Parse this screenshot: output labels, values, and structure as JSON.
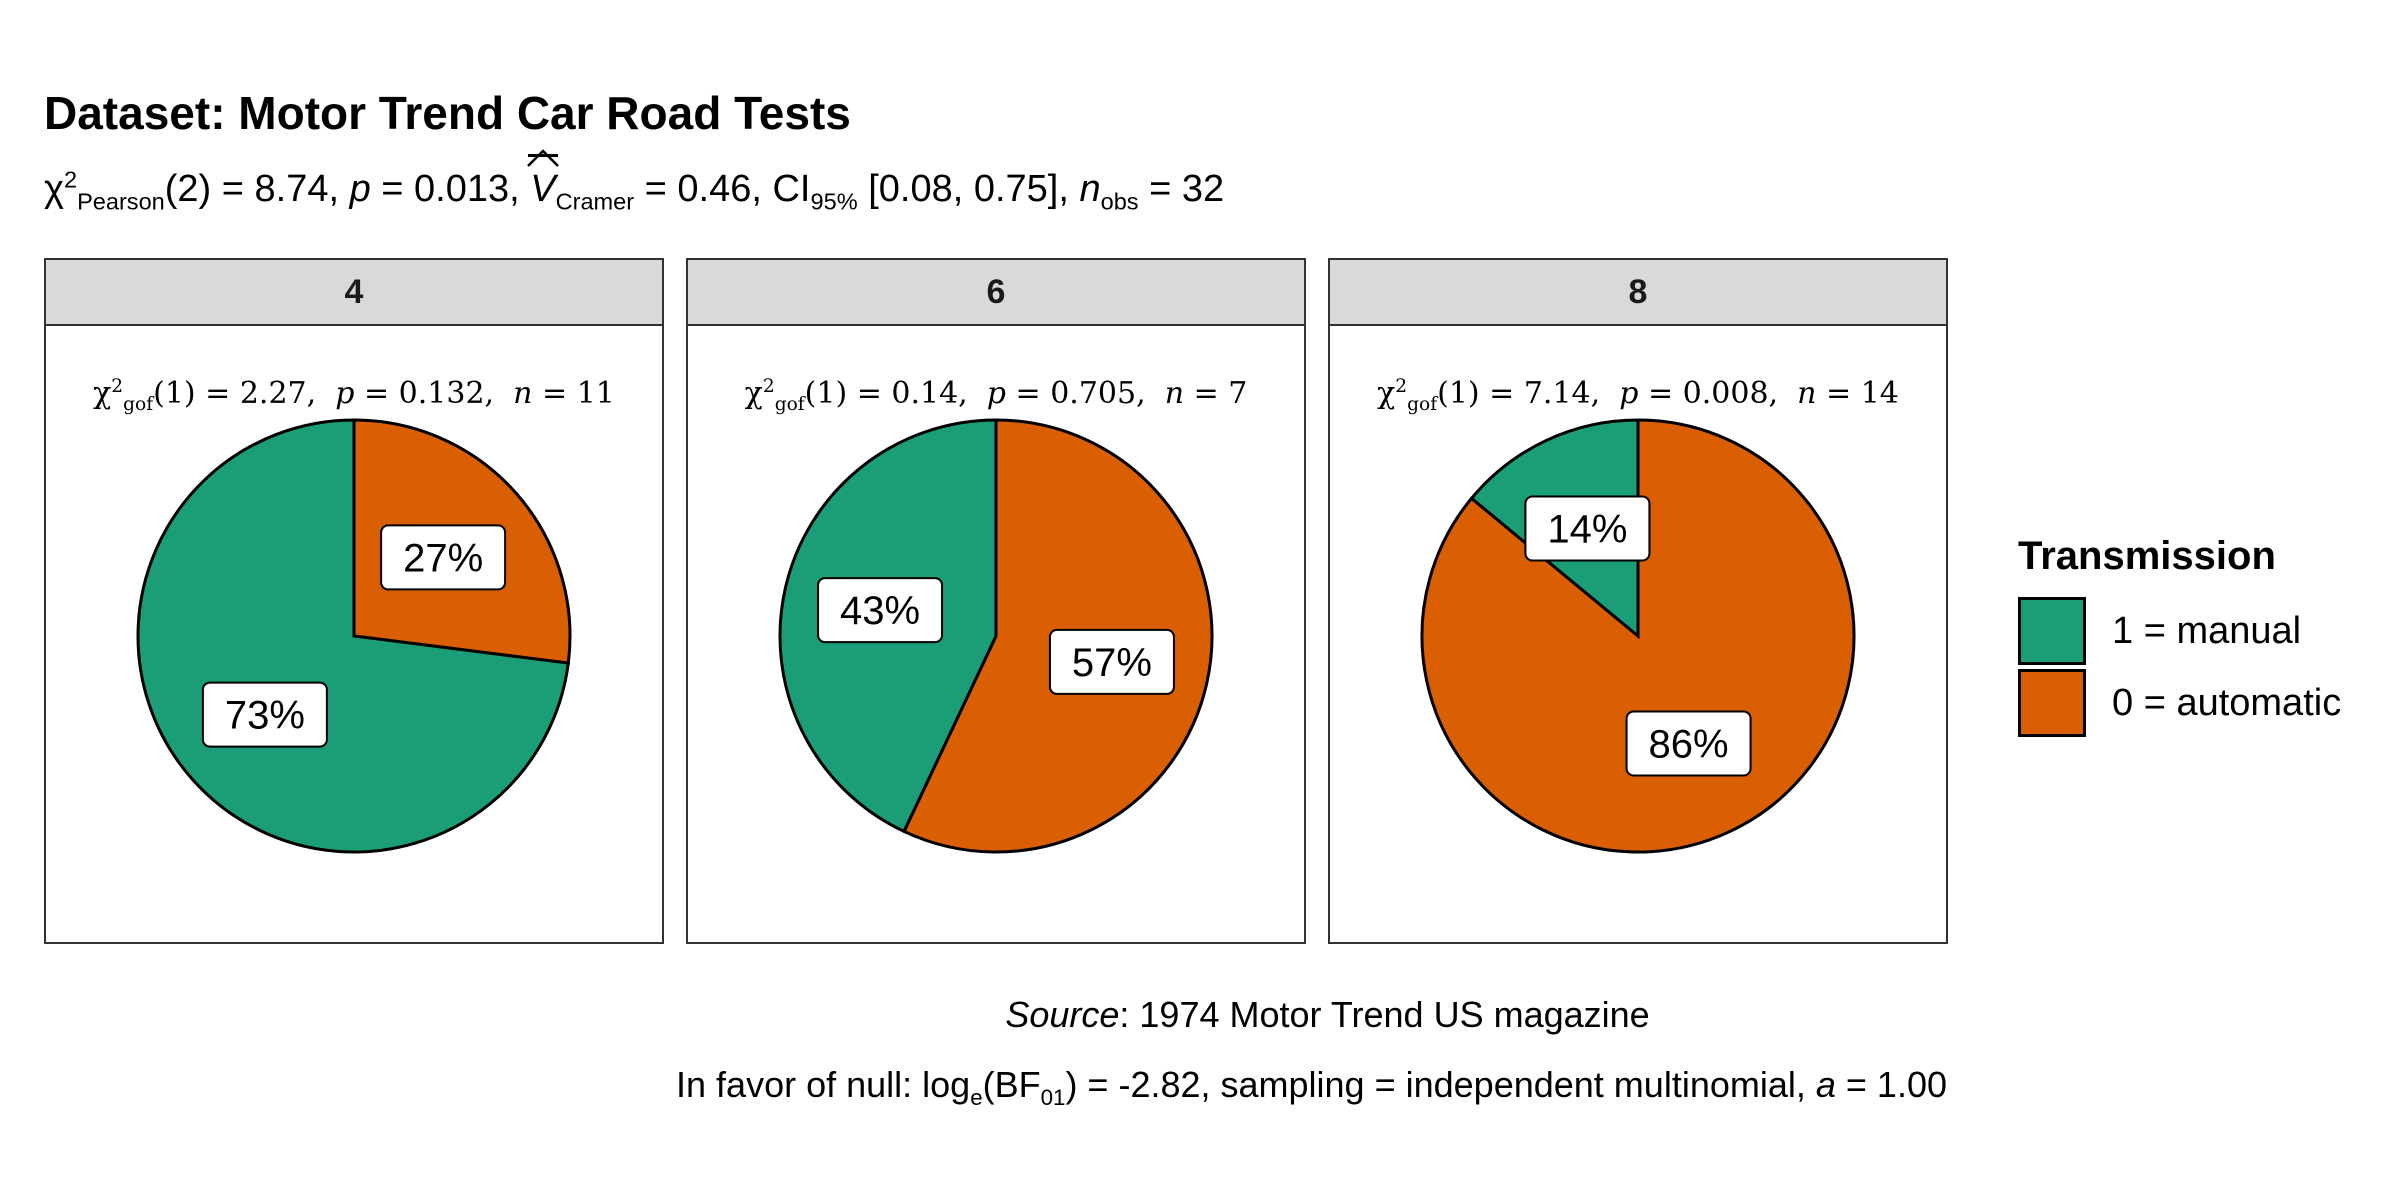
{
  "title": "Dataset: Motor Trend Car Road Tests",
  "subtitle": {
    "chi_symbol": "χ",
    "chi_sup": "2",
    "chi_sub": "Pearson",
    "df_text": "(2) = 8.74, ",
    "p_label": "p",
    "p_text": " = 0.013, ",
    "v_label": "V",
    "v_sub": "Cramer",
    "v_text": " = 0.46, CI",
    "ci_sub": "95%",
    "ci_text": " [0.08, 0.75], ",
    "n_label": "n",
    "n_sub": "obs",
    "n_text": " = 32"
  },
  "chart_data": {
    "type": "pie",
    "facet_variable": "cyl",
    "legend": {
      "title": "Transmission",
      "position": "right",
      "entries": [
        {
          "label": "1 = manual",
          "color": "#1b9e77"
        },
        {
          "label": "0 = automatic",
          "color": "#d95f02"
        }
      ]
    },
    "facets": [
      {
        "strip": "4",
        "stat": {
          "df": "(1)",
          "rest": " = 2.27,  ",
          "p": " = 0.132,  ",
          "n": " = 11"
        },
        "slices": [
          {
            "category": "0 = automatic",
            "value": 27,
            "label": "27%"
          },
          {
            "category": "1 = manual",
            "value": 73,
            "label": "73%"
          }
        ]
      },
      {
        "strip": "6",
        "stat": {
          "df": "(1)",
          "rest": " = 0.14,  ",
          "p": " = 0.705,  ",
          "n": " = 7"
        },
        "slices": [
          {
            "category": "0 = automatic",
            "value": 57,
            "label": "57%"
          },
          {
            "category": "1 = manual",
            "value": 43,
            "label": "43%"
          }
        ]
      },
      {
        "strip": "8",
        "stat": {
          "df": "(1)",
          "rest": " = 7.14,  ",
          "p": " = 0.008,  ",
          "n": " = 14"
        },
        "slices": [
          {
            "category": "0 = automatic",
            "value": 86,
            "label": "86%"
          },
          {
            "category": "1 = manual",
            "value": 14,
            "label": "14%"
          }
        ]
      }
    ],
    "colors": {
      "manual": "#1b9e77",
      "automatic": "#d95f02"
    }
  },
  "stat_symbols": {
    "chi": "χ",
    "sup": "2",
    "sub": "gof",
    "p": "p",
    "n": "n"
  },
  "caption": {
    "source_label": "Source",
    "source_text": ": 1974 Motor Trend US magazine",
    "bf_prefix": "In favor of null: log",
    "bf_e": "e",
    "bf_mid": "(BF",
    "bf_sub": "01",
    "bf_rest": ") = -2.82, sampling = independent multinomial, ",
    "a_label": "a",
    "a_text": " = 1.00"
  }
}
